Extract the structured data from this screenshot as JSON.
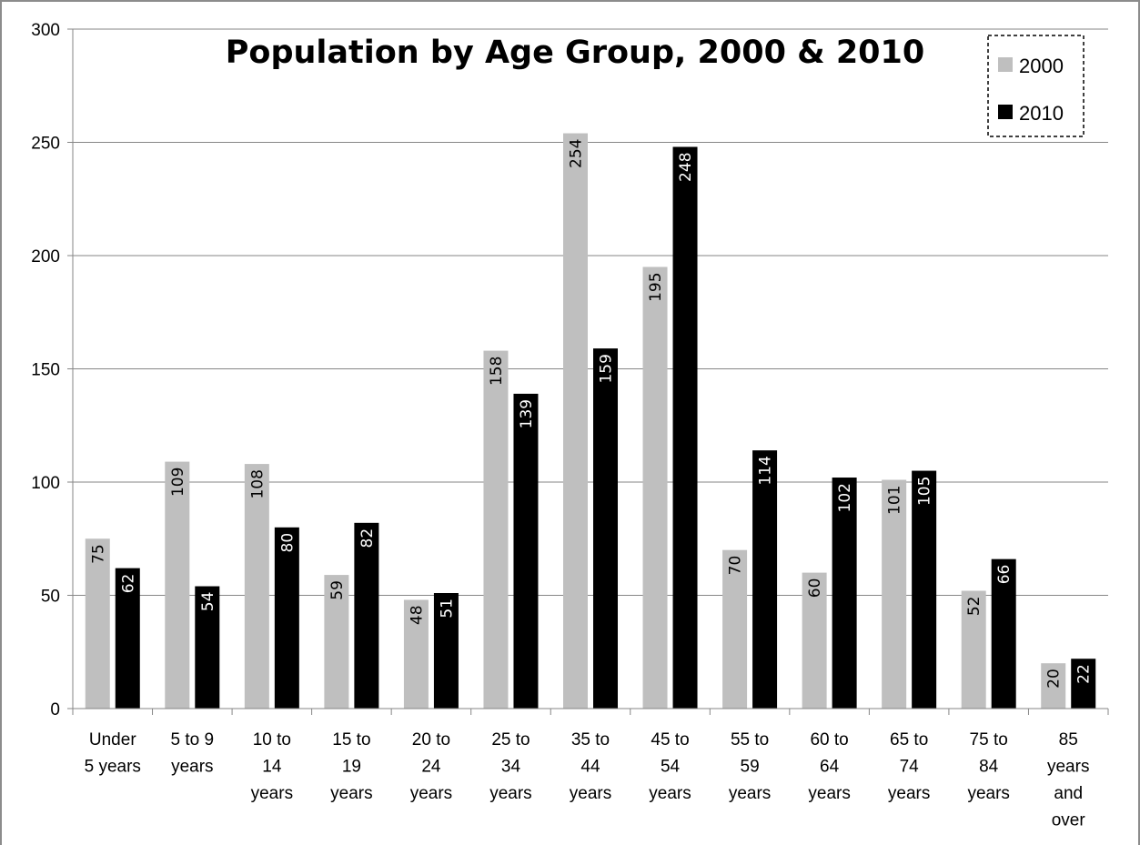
{
  "chart_data": {
    "type": "bar",
    "title": "Population by Age Group, 2000 & 2010",
    "xlabel": "",
    "ylabel": "",
    "ylim": [
      0,
      300
    ],
    "yticks": [
      0,
      50,
      100,
      150,
      200,
      250,
      300
    ],
    "grid": true,
    "legend_position": "top-right",
    "categories": [
      "Under 5 years",
      "5 to 9 years",
      "10 to 14 years",
      "15 to 19 years",
      "20 to 24 years",
      "25 to 34 years",
      "35 to 44 years",
      "45 to 54 years",
      "55 to 59 years",
      "60 to 64 years",
      "65 to 74 years",
      "75 to 84 years",
      "85 years and over"
    ],
    "category_label_lines": [
      [
        "Under",
        "5 years"
      ],
      [
        "5 to 9",
        "years"
      ],
      [
        "10 to",
        "14",
        "years"
      ],
      [
        "15 to",
        "19",
        "years"
      ],
      [
        "20 to",
        "24",
        "years"
      ],
      [
        "25 to",
        "34",
        "years"
      ],
      [
        "35 to",
        "44",
        "years"
      ],
      [
        "45 to",
        "54",
        "years"
      ],
      [
        "55 to",
        "59",
        "years"
      ],
      [
        "60 to",
        "64",
        "years"
      ],
      [
        "65 to",
        "74",
        "years"
      ],
      [
        "75 to",
        "84",
        "years"
      ],
      [
        "85",
        "years",
        "and",
        "over"
      ]
    ],
    "series": [
      {
        "name": "2000",
        "color": "#bfbfbf",
        "label_color": "#000000",
        "values": [
          75,
          109,
          108,
          59,
          48,
          158,
          254,
          195,
          70,
          60,
          101,
          52,
          20
        ]
      },
      {
        "name": "2010",
        "color": "#000000",
        "label_color": "#ffffff",
        "values": [
          62,
          54,
          80,
          82,
          51,
          139,
          159,
          248,
          114,
          102,
          105,
          66,
          22
        ]
      }
    ]
  }
}
